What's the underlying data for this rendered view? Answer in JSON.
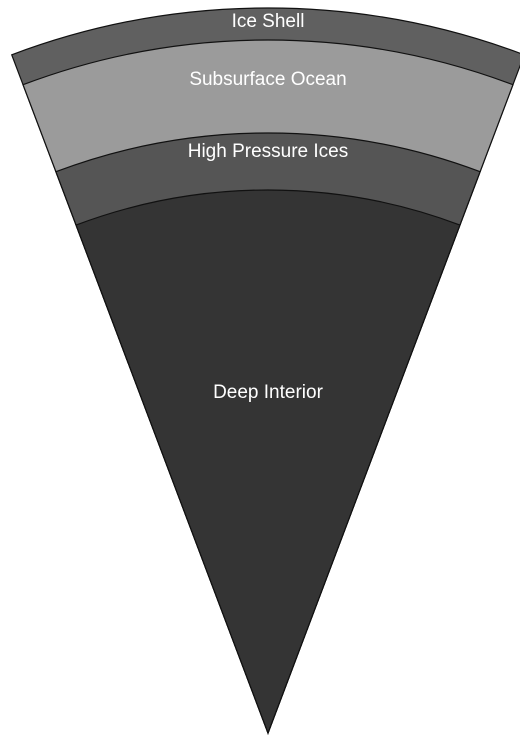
{
  "layers": [
    {
      "label": "Ice Shell"
    },
    {
      "label": "Subsurface Ocean"
    },
    {
      "label": "High Pressure Ices"
    },
    {
      "label": "Deep Interior"
    }
  ]
}
